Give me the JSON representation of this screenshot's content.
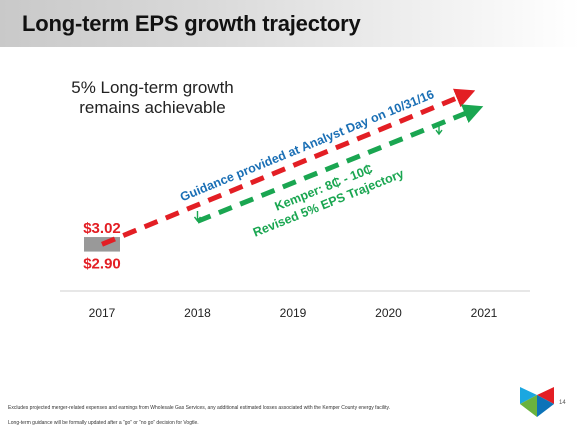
{
  "slide": {
    "title": "Long-term EPS growth trajectory",
    "subtitle": "5% Long-term growth remains achievable",
    "footnotes": [
      "Excludes projected merger-related expenses and earnings from Wholesale Gas Services, any additional estimated losses associated with the Kemper County energy facility.",
      "Long-term guidance will be formally updated after a “go” or “no go” decision for Vogtle."
    ],
    "page_number": "14"
  },
  "chart_data": {
    "type": "bar",
    "categories": [
      "2017",
      "2018",
      "2019",
      "2020",
      "2021"
    ],
    "ylim": [
      2.5,
      4.4
    ],
    "range_bar": {
      "category": "2017",
      "low": 2.9,
      "high": 3.02,
      "low_label": "$2.90",
      "high_label": "$3.02",
      "color": "#999999"
    },
    "series": [
      {
        "name": "Guidance provided at Analyst Day on 10/31/16",
        "color": "#e31e24",
        "style": "dashed-arrow",
        "start_x": "2017",
        "start_y": 2.96,
        "end_x": "2021",
        "end_y": 4.2
      },
      {
        "name": "Kemper: 8₵ - 10₵ Revised 5% EPS Trajectory",
        "color": "#1aa651",
        "style": "dashed-arrow",
        "start_x": "2018",
        "start_y": 3.15,
        "end_x": "2021",
        "end_y": 4.07
      }
    ],
    "annotations": [
      {
        "text": "Guidance provided at Analyst Day on 10/31/16",
        "color": "#1a6fb5"
      },
      {
        "text": "Kemper:  8₵ - 10₵",
        "color": "#1aa651"
      },
      {
        "text": "Revised 5% EPS Trajectory",
        "color": "#1aa651"
      }
    ],
    "drop_markers": [
      {
        "x": "2018",
        "color": "#1aa651"
      },
      {
        "x": "2021",
        "color": "#1aa651"
      }
    ]
  }
}
